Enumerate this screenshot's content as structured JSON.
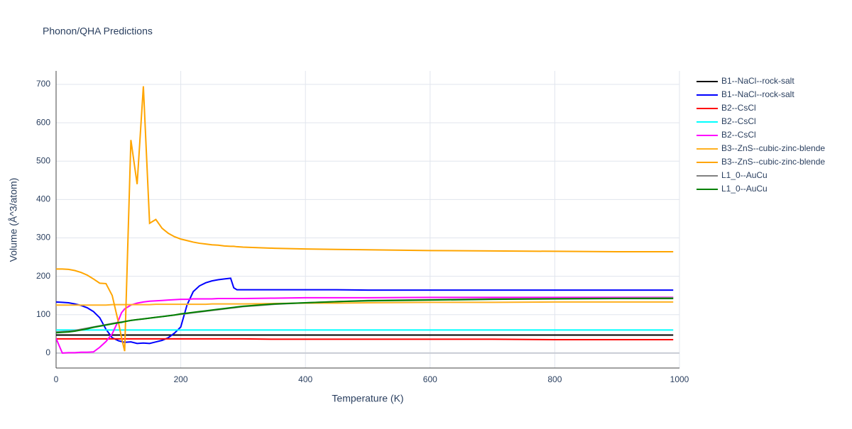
{
  "chart_data": {
    "type": "line",
    "title": "Phonon/QHA Predictions",
    "x_label": "Temperature (K)",
    "y_label": "Volume (Å^3/atom)",
    "x": [
      0,
      10,
      20,
      30,
      40,
      50,
      60,
      70,
      80,
      90,
      100,
      105,
      110,
      120,
      130,
      140,
      150,
      160,
      170,
      180,
      190,
      200,
      210,
      220,
      230,
      240,
      250,
      260,
      270,
      280,
      285,
      290,
      300,
      350,
      400,
      450,
      500,
      600,
      700,
      800,
      900,
      990
    ],
    "xlim": [
      0,
      1000
    ],
    "xticks": [
      0,
      200,
      400,
      600,
      800,
      1000
    ],
    "ylim": [
      -39,
      735
    ],
    "yticks": [
      0,
      100,
      200,
      300,
      400,
      500,
      600,
      700
    ],
    "grid": true,
    "legend": "right",
    "series": [
      {
        "name": "B1--NaCl--rock-salt",
        "color": "#000000",
        "values": [
          47,
          47,
          47,
          47,
          47,
          47,
          47,
          47,
          47,
          47,
          47,
          47,
          47,
          47,
          47,
          47,
          47,
          47,
          47,
          47,
          47,
          47,
          47,
          47,
          47,
          47,
          47,
          47,
          47,
          47,
          47,
          47,
          47,
          47,
          47,
          47,
          47,
          47,
          47,
          47,
          47,
          47
        ]
      },
      {
        "name": "B1--NaCl--rock-salt",
        "color": "#0000ff",
        "values": [
          133,
          132,
          131,
          128,
          124,
          118,
          108,
          92,
          62,
          40,
          32,
          30,
          28,
          29,
          25,
          26,
          25,
          29,
          33,
          40,
          52,
          68,
          125,
          160,
          175,
          183,
          188,
          191,
          193,
          195,
          170,
          165,
          165,
          165,
          165,
          165,
          164,
          164,
          164,
          164,
          164,
          164
        ]
      },
      {
        "name": "B2--CsCl",
        "color": "#ff0000",
        "values": [
          37,
          37,
          37,
          37,
          37,
          37,
          37,
          37,
          37,
          37,
          37,
          37,
          37,
          37,
          37,
          37,
          37,
          37,
          37,
          37,
          37,
          37,
          37,
          37,
          37,
          37,
          37,
          37,
          37,
          37,
          37,
          37,
          37,
          36,
          36,
          36,
          36,
          36,
          36,
          35,
          35,
          35
        ]
      },
      {
        "name": "B2--CsCl",
        "color": "#00ffff",
        "values": [
          60,
          60,
          60,
          60,
          60,
          60,
          60,
          60,
          60,
          60,
          60,
          60,
          60,
          60,
          60,
          60,
          60,
          60,
          60,
          60,
          60,
          60,
          60,
          60,
          60,
          60,
          60,
          60,
          60,
          60,
          60,
          60,
          60,
          60,
          60,
          60,
          60,
          60,
          60,
          60,
          60,
          60
        ]
      },
      {
        "name": "B2--CsCl",
        "color": "#ff00ff",
        "values": [
          38,
          0,
          1,
          1,
          2,
          2,
          3,
          15,
          30,
          50,
          85,
          105,
          115,
          125,
          130,
          133,
          135,
          136,
          137,
          138,
          139,
          140,
          140,
          141,
          141,
          141,
          141,
          142,
          142,
          142,
          142,
          142,
          142,
          143,
          144,
          144,
          144,
          145,
          145,
          145,
          145,
          145
        ]
      },
      {
        "name": "B3--ZnS--cubic-zinc-blende",
        "color": "#ffb020",
        "values": [
          125,
          125,
          125,
          125,
          125,
          125,
          125,
          125,
          125,
          126,
          126,
          126,
          126,
          126,
          126,
          126,
          126,
          127,
          127,
          127,
          127,
          127,
          127,
          127,
          127,
          127,
          128,
          128,
          128,
          128,
          128,
          128,
          128,
          129,
          130,
          130,
          131,
          132,
          132,
          133,
          133,
          133
        ]
      },
      {
        "name": "B3--ZnS--cubic-zinc-blende",
        "color": "#ffa500",
        "values": [
          219,
          219,
          218,
          215,
          210,
          203,
          193,
          182,
          181,
          150,
          80,
          40,
          5,
          555,
          440,
          695,
          338,
          348,
          325,
          312,
          303,
          297,
          293,
          289,
          286,
          284,
          282,
          281,
          279,
          278,
          278,
          277,
          276,
          273,
          271,
          270,
          269,
          267,
          266,
          265,
          264,
          264
        ]
      },
      {
        "name": "L1_0--AuCu",
        "color": "#808080",
        "values": [
          55,
          56,
          57,
          59,
          62,
          65,
          68,
          71,
          74,
          77,
          80,
          81,
          82,
          85,
          87,
          89,
          91,
          93,
          95,
          97,
          99,
          101,
          103,
          105,
          107,
          109,
          111,
          113,
          115,
          117,
          118,
          119,
          121,
          127,
          131,
          134,
          137,
          139,
          141,
          142,
          143,
          144
        ]
      },
      {
        "name": "L1_0--AuCu",
        "color": "#008000",
        "values": [
          53,
          54,
          55,
          57,
          60,
          63,
          67,
          70,
          73,
          76,
          79,
          80,
          82,
          85,
          87,
          89,
          91,
          93,
          95,
          97,
          99,
          102,
          104,
          106,
          108,
          110,
          112,
          114,
          116,
          118,
          119,
          120,
          122,
          128,
          131,
          134,
          136,
          138,
          140,
          141,
          142,
          142
        ]
      }
    ]
  }
}
